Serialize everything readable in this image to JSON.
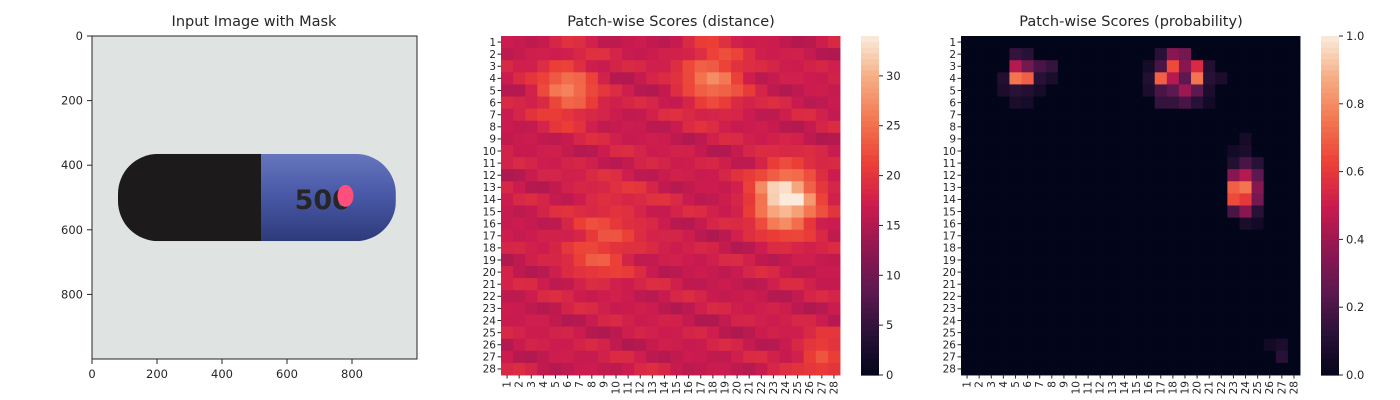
{
  "chart_data": [
    {
      "type": "image",
      "title": "Input Image with Mask",
      "xlim": [
        0,
        1000
      ],
      "ylim": [
        1000,
        0
      ],
      "xticks": [
        0,
        200,
        400,
        600,
        800
      ],
      "yticks": [
        0,
        200,
        400,
        600,
        800
      ],
      "xtick_labels": [
        "0",
        "200",
        "400",
        "600",
        "800"
      ],
      "ytick_labels": [
        "0",
        "200",
        "400",
        "600",
        "800"
      ],
      "content": {
        "background_color": "#dfe3e2",
        "capsule_cap_color": "#1c1a1a",
        "capsule_body_color": "#4a5aa8",
        "printed_text": "500",
        "mask_color": "#ff4f7a"
      }
    },
    {
      "type": "heatmap",
      "title": "Patch-wise Scores (distance)",
      "rows": 28,
      "cols": 28,
      "row_labels": [
        "1",
        "2",
        "3",
        "4",
        "5",
        "6",
        "7",
        "8",
        "9",
        "10",
        "11",
        "12",
        "13",
        "14",
        "15",
        "16",
        "17",
        "18",
        "19",
        "20",
        "21",
        "22",
        "23",
        "24",
        "25",
        "26",
        "27",
        "28"
      ],
      "col_labels": [
        "1",
        "2",
        "3",
        "4",
        "5",
        "6",
        "7",
        "8",
        "9",
        "10",
        "11",
        "12",
        "13",
        "14",
        "15",
        "16",
        "17",
        "18",
        "19",
        "20",
        "21",
        "22",
        "23",
        "24",
        "25",
        "26",
        "27",
        "28"
      ],
      "colorbar": {
        "min": 0,
        "max": 34,
        "ticks": [
          0,
          5,
          10,
          15,
          20,
          25,
          30
        ],
        "tick_labels": [
          "0",
          "5",
          "10",
          "15",
          "20",
          "25",
          "30"
        ],
        "colormap": "rocket"
      },
      "base": 17,
      "hotspots": [
        {
          "r": 5,
          "c": 6,
          "v": 9,
          "s": 1.7
        },
        {
          "r": 4,
          "c": 18,
          "v": 9,
          "s": 1.8
        },
        {
          "r": 14,
          "c": 24,
          "v": 18,
          "s": 1.8
        },
        {
          "r": 18.5,
          "c": 8.5,
          "v": 5,
          "s": 1.8
        },
        {
          "r": 27,
          "c": 27,
          "v": 6,
          "s": 1.3
        },
        {
          "r": 15,
          "c": 10,
          "v": 2.5,
          "s": 2.5
        }
      ]
    },
    {
      "type": "heatmap",
      "title": "Patch-wise Scores (probability)",
      "rows": 28,
      "cols": 28,
      "row_labels": [
        "1",
        "2",
        "3",
        "4",
        "5",
        "6",
        "7",
        "8",
        "9",
        "10",
        "11",
        "12",
        "13",
        "14",
        "15",
        "16",
        "17",
        "18",
        "19",
        "20",
        "21",
        "22",
        "23",
        "24",
        "25",
        "26",
        "27",
        "28"
      ],
      "col_labels": [
        "1",
        "2",
        "3",
        "4",
        "5",
        "6",
        "7",
        "8",
        "9",
        "10",
        "11",
        "12",
        "13",
        "14",
        "15",
        "16",
        "17",
        "18",
        "19",
        "20",
        "21",
        "22",
        "23",
        "24",
        "25",
        "26",
        "27",
        "28"
      ],
      "colorbar": {
        "min": 0,
        "max": 1,
        "ticks": [
          0,
          0.2,
          0.4,
          0.6,
          0.8,
          1.0
        ],
        "tick_labels": [
          "0.0",
          "0.2",
          "0.4",
          "0.6",
          "0.8",
          "1.0"
        ],
        "colormap": "rocket"
      },
      "cells": [
        {
          "r": 2,
          "c": 5,
          "v": 0.15
        },
        {
          "r": 2,
          "c": 6,
          "v": 0.12
        },
        {
          "r": 3,
          "c": 5,
          "v": 0.45
        },
        {
          "r": 3,
          "c": 6,
          "v": 0.3
        },
        {
          "r": 3,
          "c": 7,
          "v": 0.2
        },
        {
          "r": 3,
          "c": 8,
          "v": 0.15
        },
        {
          "r": 4,
          "c": 4,
          "v": 0.1
        },
        {
          "r": 4,
          "c": 5,
          "v": 0.75
        },
        {
          "r": 4,
          "c": 6,
          "v": 0.7
        },
        {
          "r": 4,
          "c": 7,
          "v": 0.12
        },
        {
          "r": 4,
          "c": 8,
          "v": 0.08
        },
        {
          "r": 5,
          "c": 4,
          "v": 0.08
        },
        {
          "r": 5,
          "c": 5,
          "v": 0.12
        },
        {
          "r": 5,
          "c": 6,
          "v": 0.1
        },
        {
          "r": 5,
          "c": 7,
          "v": 0.06
        },
        {
          "r": 6,
          "c": 5,
          "v": 0.08
        },
        {
          "r": 6,
          "c": 6,
          "v": 0.06
        },
        {
          "r": 2,
          "c": 17,
          "v": 0.12
        },
        {
          "r": 2,
          "c": 18,
          "v": 0.35
        },
        {
          "r": 2,
          "c": 19,
          "v": 0.3
        },
        {
          "r": 3,
          "c": 16,
          "v": 0.06
        },
        {
          "r": 3,
          "c": 17,
          "v": 0.2
        },
        {
          "r": 3,
          "c": 18,
          "v": 0.65
        },
        {
          "r": 3,
          "c": 19,
          "v": 0.35
        },
        {
          "r": 3,
          "c": 20,
          "v": 0.55
        },
        {
          "r": 3,
          "c": 21,
          "v": 0.1
        },
        {
          "r": 4,
          "c": 16,
          "v": 0.1
        },
        {
          "r": 4,
          "c": 17,
          "v": 0.7
        },
        {
          "r": 4,
          "c": 18,
          "v": 0.45
        },
        {
          "r": 4,
          "c": 19,
          "v": 0.25
        },
        {
          "r": 4,
          "c": 20,
          "v": 0.75
        },
        {
          "r": 4,
          "c": 21,
          "v": 0.12
        },
        {
          "r": 4,
          "c": 22,
          "v": 0.08
        },
        {
          "r": 5,
          "c": 16,
          "v": 0.08
        },
        {
          "r": 5,
          "c": 17,
          "v": 0.2
        },
        {
          "r": 5,
          "c": 18,
          "v": 0.25
        },
        {
          "r": 5,
          "c": 19,
          "v": 0.4
        },
        {
          "r": 5,
          "c": 20,
          "v": 0.25
        },
        {
          "r": 5,
          "c": 21,
          "v": 0.08
        },
        {
          "r": 6,
          "c": 17,
          "v": 0.15
        },
        {
          "r": 6,
          "c": 18,
          "v": 0.15
        },
        {
          "r": 6,
          "c": 19,
          "v": 0.2
        },
        {
          "r": 6,
          "c": 20,
          "v": 0.12
        },
        {
          "r": 6,
          "c": 21,
          "v": 0.05
        },
        {
          "r": 9,
          "c": 24,
          "v": 0.06
        },
        {
          "r": 10,
          "c": 23,
          "v": 0.05
        },
        {
          "r": 10,
          "c": 24,
          "v": 0.08
        },
        {
          "r": 11,
          "c": 23,
          "v": 0.1
        },
        {
          "r": 11,
          "c": 24,
          "v": 0.2
        },
        {
          "r": 11,
          "c": 25,
          "v": 0.12
        },
        {
          "r": 12,
          "c": 23,
          "v": 0.35
        },
        {
          "r": 12,
          "c": 24,
          "v": 0.45
        },
        {
          "r": 12,
          "c": 25,
          "v": 0.25
        },
        {
          "r": 13,
          "c": 23,
          "v": 0.7
        },
        {
          "r": 13,
          "c": 24,
          "v": 0.75
        },
        {
          "r": 13,
          "c": 25,
          "v": 0.35
        },
        {
          "r": 14,
          "c": 23,
          "v": 0.65
        },
        {
          "r": 14,
          "c": 24,
          "v": 0.6
        },
        {
          "r": 14,
          "c": 25,
          "v": 0.3
        },
        {
          "r": 15,
          "c": 23,
          "v": 0.2
        },
        {
          "r": 15,
          "c": 24,
          "v": 0.35
        },
        {
          "r": 15,
          "c": 25,
          "v": 0.12
        },
        {
          "r": 16,
          "c": 24,
          "v": 0.08
        },
        {
          "r": 16,
          "c": 25,
          "v": 0.05
        },
        {
          "r": 26,
          "c": 26,
          "v": 0.05
        },
        {
          "r": 26,
          "c": 27,
          "v": 0.08
        },
        {
          "r": 27,
          "c": 27,
          "v": 0.12
        }
      ]
    }
  ]
}
